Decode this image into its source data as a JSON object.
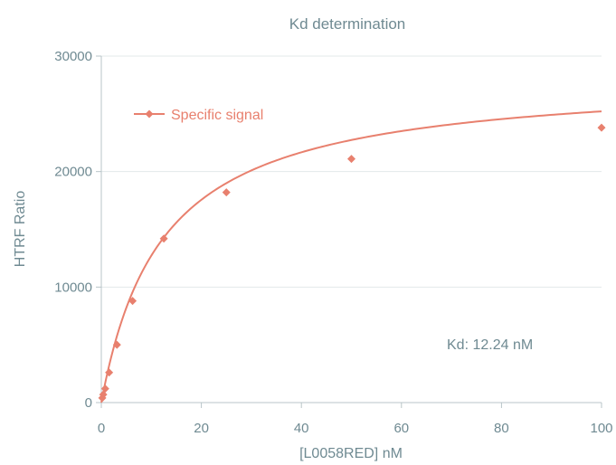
{
  "chart_data": {
    "type": "scatter",
    "title": "Kd determination",
    "xlabel": "[L0058RED] nM",
    "ylabel": "HTRF Ratio",
    "xlim": [
      0,
      100
    ],
    "ylim": [
      0,
      30000
    ],
    "xticks": [
      0,
      20,
      40,
      60,
      80,
      100
    ],
    "yticks": [
      0,
      10000,
      20000,
      30000
    ],
    "grid": true,
    "legend_position": "top-left",
    "series": [
      {
        "name": "Specific signal",
        "color": "#e8806e",
        "x": [
          0.195,
          0.39,
          0.78,
          1.56,
          3.13,
          6.25,
          12.5,
          25,
          50,
          100
        ],
        "y": [
          400,
          700,
          1200,
          2600,
          5000,
          8800,
          14200,
          18200,
          21100,
          23800
        ]
      }
    ],
    "fit": {
      "model": "one-site-binding",
      "bmax": 28300,
      "kd": 12.24
    },
    "annotation": "Kd: 12.24 nM"
  }
}
